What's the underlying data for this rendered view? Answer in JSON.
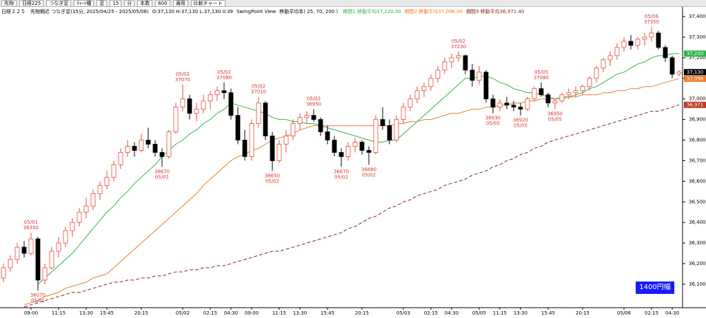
{
  "toolbar": [
    "先物",
    "日経225",
    "つなぎ足",
    "ﾁｬｰﾄ種",
    "足",
    "15",
    "分",
    "本数",
    "600",
    "適用",
    "比較チャート"
  ],
  "chart_data": {
    "type": "candlestick",
    "header": {
      "instrument": "日経２２５　先物期近 つなぎ足(15分, 2025/04/25 - 2025/05/08)",
      "ohlcv": "O:37,130 H:37,130 L:37,130 V:39",
      "view": "SwingPoint View",
      "ma_periods": "移動平均本( 25, 70, 200 )"
    },
    "categories": [
      null,
      null,
      null,
      null,
      "09:00",
      null,
      null,
      null,
      "11:15",
      null,
      null,
      null,
      "13:30",
      null,
      null,
      "15:45",
      null,
      null,
      null,
      null,
      "20:15",
      null,
      null,
      null,
      null,
      null,
      "05/02",
      null,
      null,
      null,
      "02:15",
      null,
      null,
      "04:30",
      null,
      null,
      "09:00",
      null,
      null,
      null,
      "11:15",
      null,
      null,
      "13:30",
      null,
      null,
      null,
      "15:45",
      null,
      null,
      null,
      null,
      "20:15",
      null,
      null,
      null,
      null,
      null,
      "05/03",
      null,
      null,
      null,
      "02:15",
      null,
      null,
      "04:30",
      null,
      null,
      null,
      "05/05",
      null,
      null,
      "11:15",
      null,
      null,
      "13:30",
      null,
      null,
      null,
      "15:45",
      null,
      null,
      null,
      null,
      "20:15",
      null,
      null,
      null,
      null,
      null,
      "05/06",
      null,
      null,
      null,
      "02:15",
      null,
      null,
      "04:30",
      null
    ],
    "ohlc": {
      "open": [
        36130,
        36180,
        36220,
        36280,
        36250,
        36320,
        36120,
        36180,
        36260,
        36300,
        36360,
        36400,
        36450,
        36480,
        36540,
        36580,
        36620,
        36680,
        36740,
        36770,
        36750,
        36800,
        36780,
        36740,
        36720,
        36840,
        36960,
        37000,
        36930,
        36950,
        36990,
        37020,
        37040,
        37030,
        36920,
        36800,
        36720,
        36880,
        36980,
        36820,
        36700,
        36780,
        36820,
        36880,
        36910,
        36920,
        36900,
        36840,
        36800,
        36740,
        36720,
        36770,
        36790,
        36750,
        36740,
        36900,
        36870,
        36800,
        36900,
        36960,
        37000,
        37040,
        37060,
        37100,
        37140,
        37180,
        37200,
        37210,
        37140,
        37090,
        37130,
        37000,
        36960,
        36980,
        36970,
        36960,
        36950,
        37000,
        37050,
        37020,
        36980,
        36990,
        37020,
        37030,
        37040,
        37060,
        37100,
        37150,
        37190,
        37210,
        37250,
        37280,
        37260,
        37290,
        37300,
        37320,
        37250,
        37200,
        37120
      ],
      "high": [
        36200,
        36240,
        36300,
        36310,
        36350,
        36330,
        36200,
        36280,
        36330,
        36380,
        36420,
        36470,
        36520,
        36560,
        36600,
        36650,
        36700,
        36760,
        36800,
        36790,
        36830,
        36860,
        36800,
        36760,
        36850,
        36980,
        37070,
        37020,
        36980,
        37020,
        37040,
        37060,
        37080,
        37050,
        36960,
        36850,
        36900,
        37010,
        36990,
        36840,
        36800,
        36850,
        36900,
        36930,
        36940,
        36950,
        36910,
        36870,
        36820,
        36760,
        36790,
        36810,
        36800,
        36770,
        36920,
        36960,
        36900,
        36920,
        36980,
        37020,
        37060,
        37080,
        37120,
        37160,
        37200,
        37220,
        37230,
        37215,
        37170,
        37160,
        37140,
        37020,
        37000,
        37010,
        36990,
        36980,
        37010,
        37060,
        37080,
        37030,
        37000,
        37030,
        37050,
        37060,
        37070,
        37110,
        37160,
        37200,
        37230,
        37270,
        37300,
        37310,
        37300,
        37320,
        37350,
        37330,
        37260,
        37210,
        37140
      ],
      "low": [
        36110,
        36160,
        36200,
        36230,
        36240,
        36070,
        36100,
        36170,
        36230,
        36280,
        36330,
        36380,
        36420,
        36460,
        36510,
        36560,
        36600,
        36660,
        36720,
        36720,
        36740,
        36760,
        36720,
        36670,
        36710,
        36830,
        36940,
        36900,
        36890,
        36930,
        36950,
        36990,
        37000,
        36900,
        36780,
        36700,
        36700,
        36860,
        36800,
        36650,
        36690,
        36740,
        36800,
        36850,
        36880,
        36890,
        36820,
        36780,
        36720,
        36670,
        36700,
        36740,
        36730,
        36680,
        36730,
        36850,
        36780,
        36790,
        36880,
        36940,
        36980,
        37010,
        37040,
        37080,
        37120,
        37150,
        37180,
        37120,
        37060,
        37070,
        36980,
        36930,
        36940,
        36950,
        36940,
        36920,
        36940,
        36990,
        37010,
        36960,
        36950,
        36980,
        37000,
        37010,
        37020,
        37040,
        37080,
        37130,
        37160,
        37190,
        37230,
        37240,
        37240,
        37260,
        37280,
        37240,
        37180,
        37100,
        37110
      ],
      "close": [
        36180,
        36220,
        36280,
        36250,
        36320,
        36120,
        36180,
        36260,
        36300,
        36360,
        36400,
        36450,
        36480,
        36540,
        36580,
        36620,
        36680,
        36740,
        36770,
        36750,
        36800,
        36780,
        36740,
        36720,
        36840,
        36960,
        37000,
        36930,
        36950,
        36990,
        37020,
        37040,
        37030,
        36920,
        36800,
        36720,
        36880,
        36980,
        36820,
        36700,
        36780,
        36820,
        36880,
        36910,
        36920,
        36900,
        36840,
        36800,
        36740,
        36720,
        36770,
        36790,
        36750,
        36740,
        36900,
        36870,
        36800,
        36900,
        36960,
        37000,
        37040,
        37060,
        37100,
        37140,
        37180,
        37200,
        37210,
        37140,
        37090,
        37130,
        37000,
        36960,
        36980,
        36970,
        36960,
        36950,
        37000,
        37050,
        37020,
        36980,
        36990,
        37020,
        37030,
        37040,
        37060,
        37100,
        37150,
        37190,
        37210,
        37250,
        37280,
        37260,
        37290,
        37300,
        37320,
        37250,
        37200,
        37120,
        37130
      ]
    },
    "up_color": "#e8483c",
    "down_color": "#000000",
    "series": [
      {
        "name": "期間1 移動平均37,220.00",
        "color": "#2fb34a",
        "dashed": false,
        "values": [
          null,
          null,
          null,
          null,
          null,
          36100,
          36130,
          36160,
          36190,
          36220,
          36250,
          36290,
          36330,
          36370,
          36410,
          36450,
          36480,
          36520,
          36550,
          36590,
          36620,
          36650,
          36680,
          36720,
          36750,
          36780,
          36800,
          36830,
          36850,
          36880,
          36900,
          36930,
          36950,
          36980,
          36970,
          36960,
          36950,
          36940,
          36930,
          36910,
          36900,
          36900,
          36890,
          36890,
          36880,
          36880,
          36870,
          36860,
          36850,
          36840,
          36830,
          36820,
          36810,
          36800,
          36790,
          36790,
          36800,
          36800,
          36830,
          36860,
          36890,
          36920,
          36950,
          36980,
          37010,
          37040,
          37070,
          37100,
          37100,
          37110,
          37110,
          37100,
          37080,
          37070,
          37050,
          37040,
          37030,
          37030,
          37020,
          37010,
          37000,
          37010,
          37010,
          37020,
          37030,
          37050,
          37060,
          37080,
          37100,
          37120,
          37130,
          37150,
          37170,
          37180,
          37200,
          37210,
          37210,
          37220,
          37220
        ]
      },
      {
        "name": "期間2 移動平均37,098.00",
        "color": "#f07a28",
        "dashed": false,
        "values": [
          null,
          null,
          null,
          36000,
          36010,
          36020,
          36040,
          36050,
          36060,
          36080,
          36090,
          36100,
          36110,
          36130,
          36140,
          36150,
          36180,
          36210,
          36240,
          36270,
          36300,
          36330,
          36360,
          36390,
          36420,
          36450,
          36480,
          36510,
          36540,
          36580,
          36610,
          36640,
          36670,
          36700,
          36720,
          36730,
          36750,
          36760,
          36780,
          36800,
          36810,
          36820,
          36830,
          36850,
          36860,
          36870,
          36870,
          36870,
          36870,
          36870,
          36870,
          36870,
          36870,
          36870,
          36870,
          36870,
          36870,
          36880,
          36880,
          36890,
          36890,
          36900,
          36900,
          36910,
          36920,
          36930,
          36930,
          36940,
          36950,
          36950,
          36960,
          36960,
          36970,
          36970,
          36980,
          36980,
          36990,
          36990,
          37000,
          37000,
          37000,
          37000,
          37010,
          37010,
          37020,
          37020,
          37020,
          37030,
          37030,
          37040,
          37040,
          37050,
          37050,
          37060,
          37060,
          37070,
          37080,
          37090,
          37098
        ]
      },
      {
        "name": "期間3 移動平均36,971.40",
        "color": "#8b1e1e",
        "dashed": true,
        "values": [
          null,
          null,
          null,
          35990,
          36000,
          36010,
          36020,
          36030,
          36040,
          36050,
          36060,
          36060,
          36070,
          36080,
          36090,
          36100,
          36110,
          36110,
          36120,
          36120,
          36130,
          36130,
          36140,
          36140,
          36150,
          36160,
          36160,
          36170,
          36170,
          36180,
          36180,
          36190,
          36190,
          36200,
          36210,
          36220,
          36230,
          36240,
          36250,
          36260,
          36260,
          36270,
          36280,
          36290,
          36300,
          36310,
          36320,
          36330,
          36340,
          36350,
          36370,
          36380,
          36400,
          36420,
          36430,
          36450,
          36470,
          36480,
          36500,
          36510,
          36530,
          36540,
          36550,
          36560,
          36580,
          36590,
          36600,
          36610,
          36630,
          36640,
          36650,
          36670,
          36680,
          36700,
          36710,
          36730,
          36740,
          36760,
          36770,
          36790,
          36800,
          36810,
          36820,
          36830,
          36840,
          36850,
          36860,
          36870,
          36880,
          36890,
          36900,
          36910,
          36920,
          36930,
          36940,
          36940,
          36950,
          36960,
          36971
        ]
      }
    ],
    "price_flags": [
      {
        "value": 37220,
        "label": "37,220",
        "color": "#2fb34a"
      },
      {
        "value": 37130,
        "label": "37,130",
        "color": "#000000"
      },
      {
        "value": 37098,
        "label": "37,098",
        "color": "#f07a28"
      },
      {
        "value": 36971,
        "label": "36,971",
        "color": "#c0392b"
      }
    ],
    "annotations": [
      {
        "date": "05/01",
        "price": 36350
      },
      {
        "date": "05/01",
        "price": 36070
      },
      {
        "date": "05/01",
        "price": 36670
      },
      {
        "date": "05/02",
        "price": 37070
      },
      {
        "date": "05/02",
        "price": 37080
      },
      {
        "date": "05/02",
        "price": 37010
      },
      {
        "date": "05/02",
        "price": 36650
      },
      {
        "date": "05/02",
        "price": 36950
      },
      {
        "date": "05/02",
        "price": 36670
      },
      {
        "date": "05/02",
        "price": 36680
      },
      {
        "date": "05/02",
        "price": 37230
      },
      {
        "date": "05/05",
        "price": 36930
      },
      {
        "date": "05/05",
        "price": 36920
      },
      {
        "date": "05/05",
        "price": 37080
      },
      {
        "date": "05/05",
        "price": 36950
      },
      {
        "date": "05/06",
        "price": 37350
      }
    ],
    "note": "1400円幅",
    "ylim": [
      35986,
      37447
    ],
    "yticks": [
      {
        "value": 36100,
        "label": "36,100"
      },
      {
        "value": 36200,
        "label": "36,200"
      },
      {
        "value": 36300,
        "label": "36,300"
      },
      {
        "value": 36400,
        "label": "36,400"
      },
      {
        "value": 36500,
        "label": "36,500"
      },
      {
        "value": 36600,
        "label": "36,600"
      },
      {
        "value": 36700,
        "label": "36,700"
      },
      {
        "value": 36800,
        "label": "36,800"
      },
      {
        "value": 36900,
        "label": "36,900"
      },
      {
        "value": 37000,
        "label": "37,000"
      },
      {
        "value": 37100,
        "label": "37,100"
      },
      {
        "value": 37200,
        "label": "37,200"
      },
      {
        "value": 37300,
        "label": "37,300"
      },
      {
        "value": 37400,
        "label": "37,400"
      }
    ]
  }
}
